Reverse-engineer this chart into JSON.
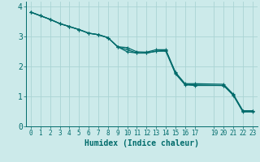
{
  "xlabel": "Humidex (Indice chaleur)",
  "bg_color": "#cceaea",
  "grid_color": "#aad4d4",
  "line_color": "#006b6b",
  "xlim": [
    -0.5,
    23.5
  ],
  "ylim": [
    0,
    4.15
  ],
  "yticks": [
    0,
    1,
    2,
    3,
    4
  ],
  "xtick_vals": [
    0,
    1,
    2,
    3,
    4,
    5,
    6,
    7,
    8,
    9,
    10,
    11,
    12,
    13,
    14,
    15,
    16,
    17,
    19,
    20,
    21,
    22,
    23
  ],
  "xtick_labels": [
    "0",
    "1",
    "2",
    "3",
    "4",
    "5",
    "6",
    "7",
    "8",
    "9",
    "10",
    "11",
    "12",
    "13",
    "14",
    "15",
    "16",
    "17",
    "19",
    "20",
    "21",
    "22",
    "23"
  ],
  "series1_x": [
    0,
    1,
    2,
    3,
    4,
    5,
    6,
    7,
    8,
    9,
    10,
    11,
    12,
    13,
    14,
    15,
    16,
    17,
    20,
    21,
    22,
    23
  ],
  "series1_y": [
    3.8,
    3.68,
    3.56,
    3.42,
    3.32,
    3.22,
    3.1,
    3.05,
    2.95,
    2.65,
    2.62,
    2.48,
    2.47,
    2.55,
    2.55,
    1.8,
    1.42,
    1.42,
    1.4,
    1.07,
    0.52,
    0.52
  ],
  "series2_x": [
    0,
    1,
    2,
    3,
    4,
    5,
    6,
    7,
    8,
    9,
    10,
    11,
    12,
    13,
    14,
    15,
    16,
    17,
    20,
    21,
    22,
    23
  ],
  "series2_y": [
    3.8,
    3.68,
    3.56,
    3.42,
    3.32,
    3.22,
    3.1,
    3.05,
    2.95,
    2.65,
    2.55,
    2.44,
    2.44,
    2.5,
    2.53,
    1.78,
    1.4,
    1.38,
    1.36,
    1.05,
    0.5,
    0.5
  ],
  "series3_x": [
    0,
    1,
    2,
    3,
    4,
    5,
    6,
    7,
    8,
    9,
    10,
    11,
    12,
    13,
    14,
    15,
    16,
    17,
    20,
    21,
    22,
    23
  ],
  "series3_y": [
    3.8,
    3.68,
    3.56,
    3.42,
    3.32,
    3.22,
    3.1,
    3.05,
    2.95,
    2.65,
    2.48,
    2.44,
    2.44,
    2.5,
    2.5,
    1.75,
    1.38,
    1.36,
    1.36,
    1.03,
    0.48,
    0.48
  ]
}
